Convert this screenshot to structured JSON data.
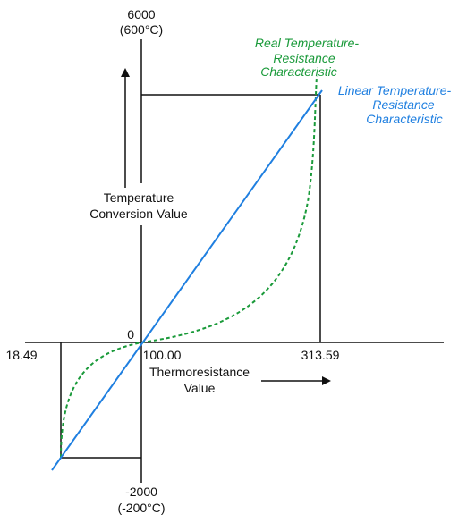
{
  "labels": {
    "y_top_value": "6000",
    "y_top_celsius": "(600°C)",
    "y_bottom_value": "-2000",
    "y_bottom_celsius": "(-200°C)",
    "origin": "0",
    "x_left": "18.49",
    "x_center": "100.00",
    "x_right": "313.59",
    "y_axis_title_line1": "Temperature",
    "y_axis_title_line2": "Conversion Value",
    "x_axis_title_line1": "Thermoresistance",
    "x_axis_title_line2": "Value",
    "real_curve_line1": "Real Temperature-",
    "real_curve_line2": "Resistance",
    "real_curve_line3": "Characteristic",
    "linear_curve_line1": "Linear Temperature-",
    "linear_curve_line2": "Resistance",
    "linear_curve_line3": "Characteristic"
  },
  "colors": {
    "axes": "#111111",
    "linear": "#1f7fe0",
    "real": "#1a9a3a"
  }
}
